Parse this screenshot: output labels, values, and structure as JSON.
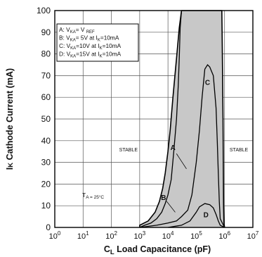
{
  "chart_data": {
    "type": "area",
    "title": "",
    "xlabel_main": "Load Capacitance (pF)",
    "xlabel_symbol": "C",
    "xlabel_symbol_sub": "L",
    "ylabel_symbol": "I",
    "ylabel_symbol_sub": "K",
    "ylabel_main": "Cathode Current (mA)",
    "x_scale": "log",
    "xlim": [
      1,
      10000000
    ],
    "ylim": [
      0,
      100
    ],
    "x_ticks": [
      1,
      10,
      100,
      1000,
      10000,
      100000,
      1000000,
      10000000
    ],
    "x_tick_labels": [
      {
        "base": "10",
        "exp": "0"
      },
      {
        "base": "10",
        "exp": "1"
      },
      {
        "base": "10",
        "exp": "2"
      },
      {
        "base": "10",
        "exp": "3"
      },
      {
        "base": "10",
        "exp": "4"
      },
      {
        "base": "10",
        "exp": "5"
      },
      {
        "base": "10",
        "exp": "6"
      },
      {
        "base": "10",
        "exp": "7"
      }
    ],
    "y_ticks": [
      0,
      10,
      20,
      30,
      40,
      50,
      60,
      70,
      80,
      90,
      100
    ],
    "y_tick_labels": [
      "0",
      "10",
      "20",
      "30",
      "40",
      "50",
      "60",
      "70",
      "80",
      "90",
      "100"
    ],
    "grid": true,
    "legend_placement": "top-left",
    "legend": [
      {
        "pre": "A: V",
        "sub1": "KA",
        "mid": "= V ",
        "sub2": "REF",
        "post": "",
        "sub3": "",
        "tail": ""
      },
      {
        "pre": "B: V",
        "sub1": "KA",
        "mid": "= 5V at I",
        "sub2": "K",
        "post": "=10mA",
        "sub3": "",
        "tail": ""
      },
      {
        "pre": "C: V",
        "sub1": "KA",
        "mid": "=10V at I",
        "sub2": "K",
        "post": "=10mA",
        "sub3": "",
        "tail": ""
      },
      {
        "pre": "D: V",
        "sub1": "KA",
        "mid": "=15V at I",
        "sub2": "K",
        "post": "=10mA",
        "sub3": "",
        "tail": ""
      }
    ],
    "fill_color": "#c8c8c8",
    "line_color": "#000000",
    "region_labels": [
      "STABLE",
      "STABLE"
    ],
    "temperature_note": {
      "pre": "T",
      "sub": "A = 25°C"
    },
    "series": [
      {
        "name": "A",
        "label": "A",
        "envelope": true,
        "points": [
          [
            1000,
            0
          ],
          [
            1000,
            1
          ],
          [
            2000,
            3
          ],
          [
            3500,
            7
          ],
          [
            5000,
            12
          ],
          [
            6500,
            18
          ],
          [
            8000,
            25
          ],
          [
            10000,
            35
          ],
          [
            12000,
            45
          ],
          [
            15000,
            60
          ],
          [
            20000,
            78
          ],
          [
            25000,
            92
          ],
          [
            30000,
            100
          ],
          [
            800000,
            100
          ],
          [
            820000,
            90
          ],
          [
            850000,
            70
          ],
          [
            880000,
            50
          ],
          [
            900000,
            30
          ],
          [
            920000,
            10
          ],
          [
            950000,
            2
          ],
          [
            1000000,
            0
          ]
        ]
      },
      {
        "name": "B",
        "label": "B",
        "envelope": false,
        "points": [
          [
            1000,
            0
          ],
          [
            1500,
            1
          ],
          [
            2500,
            2
          ],
          [
            4000,
            4
          ],
          [
            6000,
            7
          ],
          [
            8000,
            11
          ],
          [
            10000,
            15
          ],
          [
            13000,
            22
          ],
          [
            16000,
            35
          ],
          [
            20000,
            50
          ],
          [
            23000,
            65
          ],
          [
            25000,
            78
          ],
          [
            27000,
            92
          ],
          [
            30000,
            100
          ]
        ]
      },
      {
        "name": "C",
        "label": "C",
        "envelope": false,
        "points": [
          [
            1000,
            0
          ],
          [
            4000,
            1
          ],
          [
            10000,
            2
          ],
          [
            20000,
            3
          ],
          [
            30000,
            5
          ],
          [
            50000,
            8
          ],
          [
            70000,
            15
          ],
          [
            100000,
            30
          ],
          [
            130000,
            45
          ],
          [
            160000,
            60
          ],
          [
            200000,
            73
          ],
          [
            250000,
            75
          ],
          [
            300000,
            74
          ],
          [
            400000,
            70
          ],
          [
            500000,
            55
          ],
          [
            550000,
            40
          ],
          [
            600000,
            25
          ],
          [
            650000,
            12
          ],
          [
            700000,
            4
          ],
          [
            1000000,
            0
          ]
        ]
      },
      {
        "name": "D",
        "label": "D",
        "envelope": false,
        "points": [
          [
            10000,
            0
          ],
          [
            30000,
            1
          ],
          [
            60000,
            3
          ],
          [
            100000,
            7
          ],
          [
            130000,
            9.5
          ],
          [
            200000,
            11
          ],
          [
            300000,
            10.5
          ],
          [
            400000,
            9
          ],
          [
            500000,
            6
          ],
          [
            600000,
            3
          ],
          [
            700000,
            1
          ],
          [
            1000000,
            0
          ]
        ]
      }
    ],
    "curve_labels": [
      {
        "text": "A",
        "x": 15000,
        "y": 37,
        "lx1": 20000,
        "ly1": 34,
        "lx2": 45000,
        "ly2": 27
      },
      {
        "text": "B",
        "x": 7000,
        "y": 14,
        "lx1": 9000,
        "ly1": 12,
        "lx2": 18000,
        "ly2": 7
      },
      {
        "text": "C",
        "x": 250000,
        "y": 67,
        "lx1": 0,
        "ly1": 0,
        "lx2": 0,
        "ly2": 0
      },
      {
        "text": "D",
        "x": 220000,
        "y": 6,
        "lx1": 0,
        "ly1": 0,
        "lx2": 0,
        "ly2": 0
      }
    ],
    "region_label_positions": [
      {
        "text": "STABLE",
        "x": 400,
        "y": 36
      },
      {
        "text": "STABLE",
        "x": 3200000,
        "y": 36
      }
    ]
  }
}
